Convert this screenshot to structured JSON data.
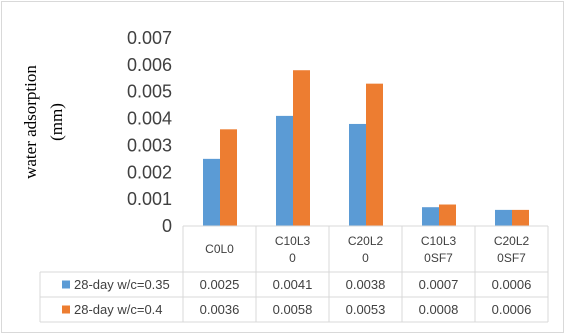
{
  "chart_data": {
    "type": "bar",
    "ylabel_lines": [
      "water adsorption",
      "(mm)"
    ],
    "yticks": [
      "0",
      "0.001",
      "0.002",
      "0.003",
      "0.004",
      "0.005",
      "0.006",
      "0.007"
    ],
    "ylim": [
      0,
      0.007
    ],
    "grid": false,
    "legend_placement": "bottom data table",
    "categories": [
      [
        "C0L0"
      ],
      [
        "C10L3",
        "0"
      ],
      [
        "C20L2",
        "0"
      ],
      [
        "C10L3",
        "0SF7"
      ],
      [
        "C20L2",
        "0SF7"
      ]
    ],
    "series": [
      {
        "name": "28-day w/c=0.35",
        "color": "#5b9bd5",
        "values": [
          0.0025,
          0.0041,
          0.0038,
          0.0007,
          0.0006
        ],
        "labels": [
          "0.0025",
          "0.0041",
          "0.0038",
          "0.0007",
          "0.0006"
        ]
      },
      {
        "name": "28-day w/c=0.4",
        "color": "#ed7d31",
        "values": [
          0.0036,
          0.0058,
          0.0053,
          0.0008,
          0.0006
        ],
        "labels": [
          "0.0036",
          "0.0058",
          "0.0053",
          "0.0008",
          "0.0006"
        ]
      }
    ]
  }
}
